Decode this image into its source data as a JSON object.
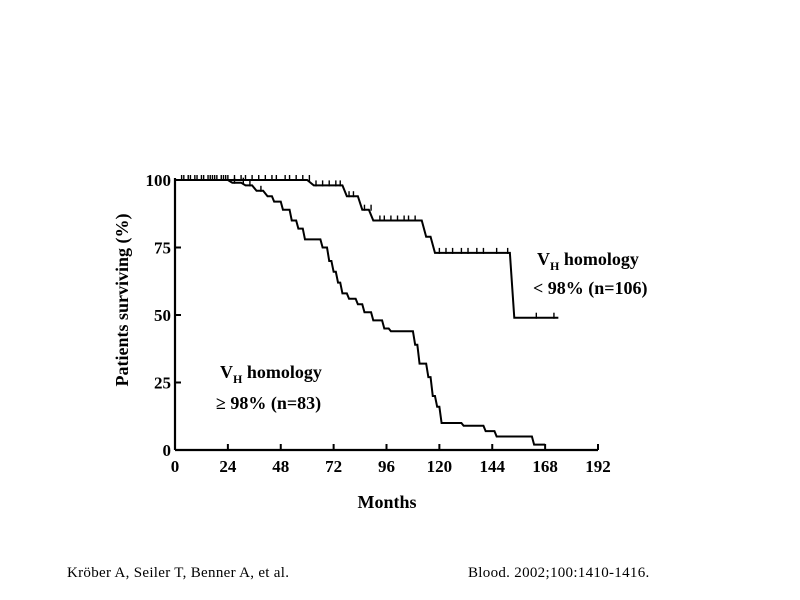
{
  "chart_data": {
    "type": "line",
    "step": true,
    "xlabel": "Months",
    "ylabel": "Patients surviving (%)",
    "xlim": [
      0,
      192
    ],
    "ylim": [
      0,
      100
    ],
    "x_ticks": [
      0,
      24,
      48,
      72,
      96,
      120,
      144,
      168,
      192
    ],
    "y_ticks": [
      0,
      25,
      50,
      75,
      100
    ],
    "grid": false,
    "series": [
      {
        "name": "VH homology < 98% (n=106)",
        "label_lines": [
          "V",
          "H",
          " homology",
          "< 98% (n=106)"
        ],
        "points": [
          [
            0,
            100
          ],
          [
            60,
            100
          ],
          [
            63,
            98
          ],
          [
            76,
            98
          ],
          [
            78,
            94
          ],
          [
            83,
            94
          ],
          [
            85,
            89
          ],
          [
            88,
            89
          ],
          [
            90,
            85
          ],
          [
            112,
            85
          ],
          [
            114,
            79
          ],
          [
            116,
            79
          ],
          [
            118,
            73
          ],
          [
            152,
            73
          ],
          [
            154,
            49
          ],
          [
            174,
            49
          ]
        ],
        "censor_x": [
          3,
          6,
          9,
          12,
          15,
          17,
          19,
          22,
          24,
          27,
          30,
          32,
          35,
          38,
          41,
          44,
          46,
          50,
          52,
          55,
          58,
          61,
          64,
          67,
          70,
          73,
          75,
          79,
          81,
          86,
          89,
          93,
          95,
          98,
          101,
          104,
          106,
          109,
          120,
          123,
          126,
          130,
          133,
          137,
          140,
          146,
          151,
          164,
          172
        ]
      },
      {
        "name": "VH homology ≥ 98% (n=83)",
        "label_lines": [
          "V",
          "H",
          " homology",
          "≥ 98% (n=83)"
        ],
        "points": [
          [
            0,
            100
          ],
          [
            24,
            100
          ],
          [
            26,
            99
          ],
          [
            30,
            99
          ],
          [
            32,
            98
          ],
          [
            35,
            98
          ],
          [
            37,
            96
          ],
          [
            40,
            96
          ],
          [
            42,
            94
          ],
          [
            44,
            94
          ],
          [
            45,
            92
          ],
          [
            48,
            92
          ],
          [
            49,
            89
          ],
          [
            52,
            89
          ],
          [
            53,
            85
          ],
          [
            55,
            85
          ],
          [
            56,
            82
          ],
          [
            58,
            82
          ],
          [
            59,
            78
          ],
          [
            66,
            78
          ],
          [
            67,
            75
          ],
          [
            69,
            75
          ],
          [
            70,
            70
          ],
          [
            71,
            70
          ],
          [
            72,
            66
          ],
          [
            73,
            66
          ],
          [
            74,
            62
          ],
          [
            75,
            62
          ],
          [
            76,
            58
          ],
          [
            78,
            58
          ],
          [
            79,
            56
          ],
          [
            82,
            56
          ],
          [
            83,
            54
          ],
          [
            85,
            54
          ],
          [
            86,
            51
          ],
          [
            89,
            51
          ],
          [
            90,
            48
          ],
          [
            94,
            48
          ],
          [
            95,
            45
          ],
          [
            97,
            45
          ],
          [
            98,
            44
          ],
          [
            108,
            44
          ],
          [
            109,
            39
          ],
          [
            110,
            39
          ],
          [
            111,
            32
          ],
          [
            114,
            32
          ],
          [
            115,
            27
          ],
          [
            116,
            27
          ],
          [
            117,
            20
          ],
          [
            118,
            20
          ],
          [
            119,
            16
          ],
          [
            120,
            16
          ],
          [
            121,
            10
          ],
          [
            130,
            10
          ],
          [
            131,
            9
          ],
          [
            140,
            9
          ],
          [
            141,
            7
          ],
          [
            145,
            7
          ],
          [
            146,
            5
          ],
          [
            162,
            5
          ],
          [
            163,
            2
          ],
          [
            168,
            2
          ]
        ],
        "censor_x": [
          4,
          7,
          10,
          13,
          16,
          18,
          21,
          23,
          27,
          31,
          34,
          39
        ]
      }
    ]
  },
  "citation": {
    "authors": "Kröber A, Seiler T, Benner A, et al.",
    "journal": "Blood. 2002;100:1410-1416."
  }
}
